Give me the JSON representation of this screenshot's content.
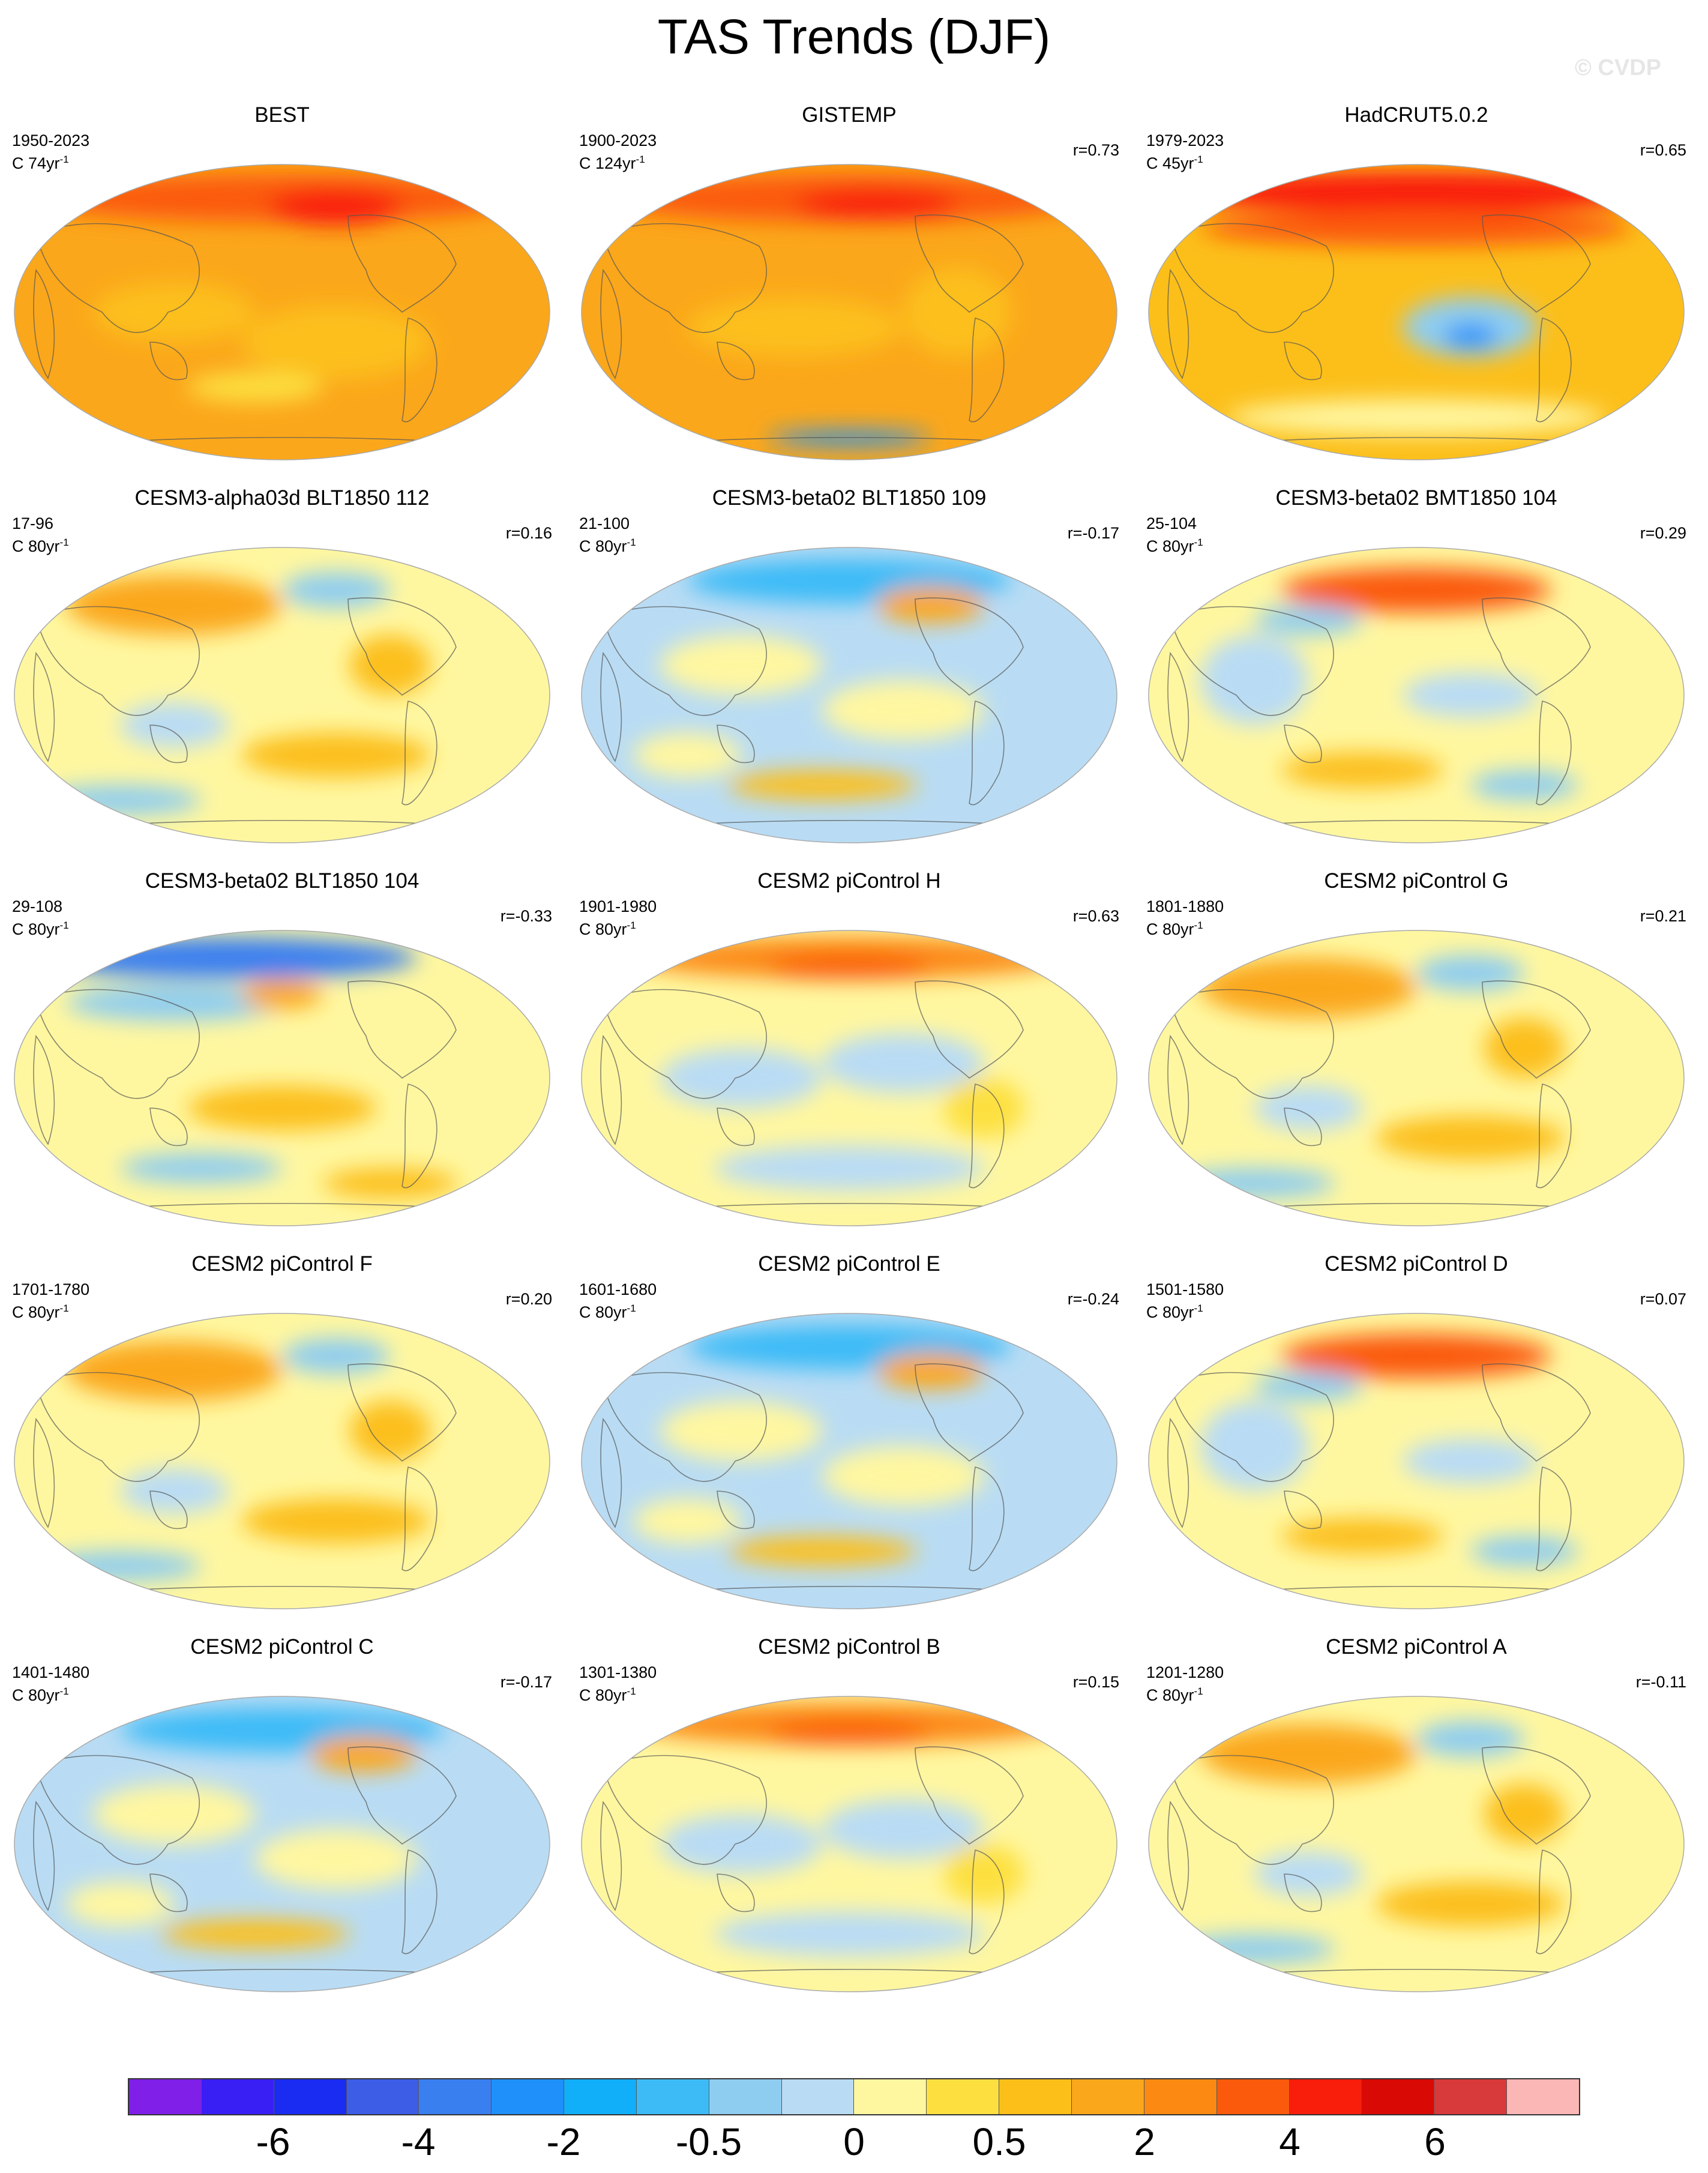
{
  "title": "TAS Trends (DJF)",
  "watermark": "© CVDP",
  "panels": [
    {
      "title": "BEST",
      "years": "1950-2023",
      "units": "C 74yr",
      "units_sup": "-1",
      "r": "",
      "pattern": "warm"
    },
    {
      "title": "GISTEMP",
      "years": "1900-2023",
      "units": "C 124yr",
      "units_sup": "-1",
      "r": "r=0.73",
      "pattern": "warm2"
    },
    {
      "title": "HadCRUT5.0.2",
      "years": "1979-2023",
      "units": "C 45yr",
      "units_sup": "-1",
      "r": "r=0.65",
      "pattern": "warm3"
    },
    {
      "title": "CESM3-alpha03d BLT1850 112",
      "years": "17-96",
      "units": "C 80yr",
      "units_sup": "-1",
      "r": "r=0.16",
      "pattern": "mixwarm"
    },
    {
      "title": "CESM3-beta02 BLT1850 109",
      "years": "21-100",
      "units": "C 80yr",
      "units_sup": "-1",
      "r": "r=-0.17",
      "pattern": "mixcool"
    },
    {
      "title": "CESM3-beta02 BMT1850 104",
      "years": "25-104",
      "units": "C 80yr",
      "units_sup": "-1",
      "r": "r=0.29",
      "pattern": "mixwarm2"
    },
    {
      "title": "CESM3-beta02 BLT1850 104",
      "years": "29-108",
      "units": "C 80yr",
      "units_sup": "-1",
      "r": "r=-0.33",
      "pattern": "coldnorth"
    },
    {
      "title": "CESM2 piControl H",
      "years": "1901-1980",
      "units": "C 80yr",
      "units_sup": "-1",
      "r": "r=0.63",
      "pattern": "warmnorth"
    },
    {
      "title": "CESM2 piControl G",
      "years": "1801-1880",
      "units": "C 80yr",
      "units_sup": "-1",
      "r": "r=0.21",
      "pattern": "mixwarm"
    },
    {
      "title": "CESM2 piControl F",
      "years": "1701-1780",
      "units": "C 80yr",
      "units_sup": "-1",
      "r": "r=0.20",
      "pattern": "mixwarm"
    },
    {
      "title": "CESM2 piControl E",
      "years": "1601-1680",
      "units": "C 80yr",
      "units_sup": "-1",
      "r": "r=-0.24",
      "pattern": "mixcool"
    },
    {
      "title": "CESM2 piControl D",
      "years": "1501-1580",
      "units": "C 80yr",
      "units_sup": "-1",
      "r": "r=0.07",
      "pattern": "mixwarm2"
    },
    {
      "title": "CESM2 piControl C",
      "years": "1401-1480",
      "units": "C 80yr",
      "units_sup": "-1",
      "r": "r=-0.17",
      "pattern": "mixcool"
    },
    {
      "title": "CESM2 piControl B",
      "years": "1301-1380",
      "units": "C 80yr",
      "units_sup": "-1",
      "r": "r=0.15",
      "pattern": "warmnorth"
    },
    {
      "title": "CESM2 piControl A",
      "years": "1201-1280",
      "units": "C 80yr",
      "units_sup": "-1",
      "r": "r=-0.11",
      "pattern": "mixwarm"
    }
  ],
  "colorbar": {
    "colors": [
      "#7f1fe8",
      "#3a1ff5",
      "#1a2cf2",
      "#3d5de6",
      "#3a7ff0",
      "#1f90fa",
      "#11aefa",
      "#3dbbf7",
      "#8fcdf0",
      "#b9dcf4",
      "#fff7a0",
      "#fde040",
      "#fcbf1a",
      "#fba71b",
      "#fc8a12",
      "#fb5a0c",
      "#f91e0c",
      "#d90a05",
      "#d8393a",
      "#fbb6b6"
    ],
    "labels": [
      "-6",
      "-4",
      "-2",
      "-0.5",
      "0",
      "0.5",
      "2",
      "4",
      "6"
    ]
  }
}
